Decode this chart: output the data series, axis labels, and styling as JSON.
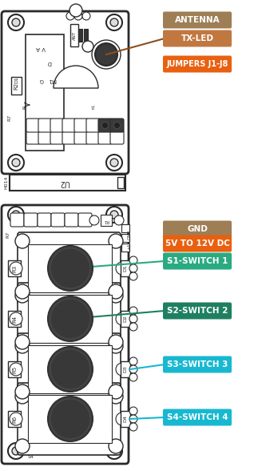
{
  "fig_width": 3.23,
  "fig_height": 5.88,
  "dpi": 100,
  "bg_color": "#ffffff",
  "outline_color": "#2a2a2a",
  "label_antenna": {
    "text": "ANTENNA",
    "bg": "#9e7e55",
    "fg": "#ffffff"
  },
  "label_txled": {
    "text": "TX-LED",
    "bg": "#c07840",
    "fg": "#ffffff"
  },
  "label_jumpers": {
    "text": "JUMPERS J1-J8",
    "bg": "#e86010",
    "fg": "#ffffff"
  },
  "label_gnd": {
    "text": "GND",
    "bg": "#9e7e55",
    "fg": "#ffffff"
  },
  "label_5v": {
    "text": "5V TO 12V DC",
    "bg": "#e86010",
    "fg": "#ffffff"
  },
  "label_sw1": {
    "text": "S1-SWITCH 1",
    "bg": "#2aaa80",
    "fg": "#ffffff"
  },
  "label_sw2": {
    "text": "S2-SWITCH 2",
    "bg": "#1e8060",
    "fg": "#ffffff"
  },
  "label_sw3": {
    "text": "S3-SWITCH 3",
    "bg": "#18b8d0",
    "fg": "#ffffff"
  },
  "label_sw4": {
    "text": "S4-SWITCH 4",
    "bg": "#18b8d0",
    "fg": "#ffffff"
  },
  "line_brown": "#8B5020",
  "line_green1": "#2aaa80",
  "line_green2": "#1e8060",
  "line_cyan": "#18b8d0"
}
